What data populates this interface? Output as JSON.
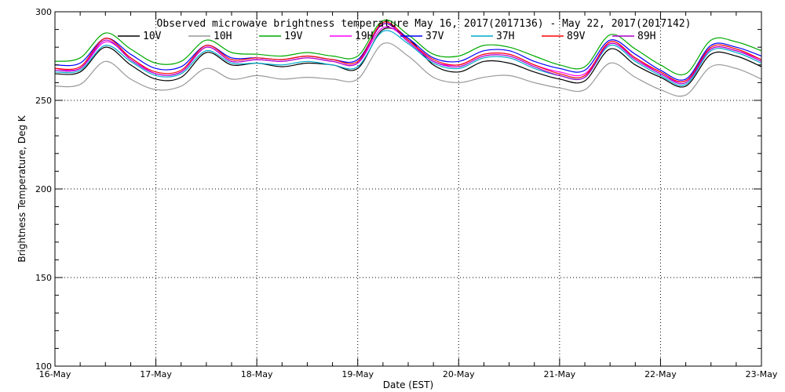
{
  "chart_data": {
    "type": "line",
    "title": "Observed microwave brightness temperature May 16, 2017(2017136) - May 22, 2017(2017142)",
    "xlabel": "Date (EST)",
    "ylabel": "Brightness Temperature, Deg K",
    "ylim": [
      100,
      300
    ],
    "yticks": [
      100,
      150,
      200,
      250,
      300
    ],
    "xlim": [
      "16-May",
      "23-May"
    ],
    "xticks": [
      "16-May",
      "17-May",
      "18-May",
      "19-May",
      "20-May",
      "21-May",
      "22-May",
      "23-May"
    ],
    "grid": "dotted",
    "legend_position": "top",
    "x": [
      "16-May 00:00",
      "16-May 06:00",
      "16-May 12:00",
      "16-May 18:00",
      "17-May 00:00",
      "17-May 06:00",
      "17-May 12:00",
      "17-May 18:00",
      "18-May 00:00",
      "18-May 06:00",
      "18-May 12:00",
      "18-May 18:00",
      "19-May 00:00",
      "19-May 06:00",
      "19-May 12:00",
      "19-May 18:00",
      "20-May 00:00",
      "20-May 06:00",
      "20-May 12:00",
      "20-May 18:00",
      "21-May 00:00",
      "21-May 06:00",
      "21-May 12:00",
      "21-May 18:00",
      "22-May 00:00",
      "22-May 06:00",
      "22-May 12:00",
      "22-May 18:00",
      "23-May 00:00"
    ],
    "series": [
      {
        "name": "10V",
        "color": "#000000",
        "values": [
          265,
          266,
          280,
          270,
          262,
          263,
          277,
          270,
          271,
          269,
          271,
          270,
          268,
          290,
          285,
          270,
          266,
          272,
          271,
          266,
          262,
          261,
          279,
          270,
          263,
          258,
          276,
          275,
          269
        ]
      },
      {
        "name": "10H",
        "color": "#999999",
        "values": [
          258,
          259,
          272,
          262,
          256,
          258,
          268,
          262,
          264,
          262,
          263,
          262,
          262,
          282,
          275,
          263,
          260,
          263,
          264,
          260,
          257,
          256,
          271,
          263,
          256,
          253,
          269,
          268,
          262
        ]
      },
      {
        "name": "19V",
        "color": "#00aa00",
        "values": [
          272,
          274,
          288,
          279,
          271,
          272,
          284,
          277,
          276,
          275,
          277,
          275,
          275,
          295,
          287,
          276,
          275,
          281,
          280,
          275,
          270,
          269,
          287,
          279,
          270,
          265,
          284,
          283,
          278
        ]
      },
      {
        "name": "19H",
        "color": "#ff00ff",
        "values": [
          268,
          268,
          283,
          274,
          265,
          266,
          280,
          272,
          273,
          272,
          274,
          272,
          271,
          291,
          284,
          272,
          270,
          276,
          276,
          270,
          266,
          265,
          282,
          274,
          265,
          261,
          279,
          278,
          273
        ]
      },
      {
        "name": "37V",
        "color": "#0000ff",
        "values": [
          270,
          271,
          285,
          276,
          268,
          269,
          281,
          274,
          274,
          273,
          275,
          273,
          273,
          293,
          285,
          274,
          272,
          278,
          278,
          272,
          268,
          267,
          284,
          276,
          267,
          262,
          281,
          280,
          275
        ]
      },
      {
        "name": "37H",
        "color": "#00aacc",
        "values": [
          266,
          267,
          281,
          272,
          264,
          265,
          278,
          271,
          271,
          270,
          272,
          270,
          269,
          289,
          282,
          271,
          268,
          274,
          274,
          268,
          264,
          263,
          281,
          272,
          264,
          259,
          278,
          277,
          271
        ]
      },
      {
        "name": "89V",
        "color": "#ff0000",
        "values": [
          268,
          269,
          285,
          274,
          266,
          267,
          281,
          273,
          274,
          273,
          275,
          273,
          272,
          294,
          284,
          273,
          270,
          276,
          276,
          270,
          265,
          264,
          283,
          274,
          266,
          261,
          280,
          279,
          273
        ]
      },
      {
        "name": "89H",
        "color": "#aa00cc",
        "values": [
          267,
          268,
          284,
          273,
          265,
          266,
          280,
          272,
          273,
          272,
          274,
          272,
          271,
          293,
          283,
          272,
          269,
          275,
          275,
          269,
          264,
          263,
          282,
          273,
          265,
          260,
          279,
          278,
          272
        ]
      }
    ]
  }
}
